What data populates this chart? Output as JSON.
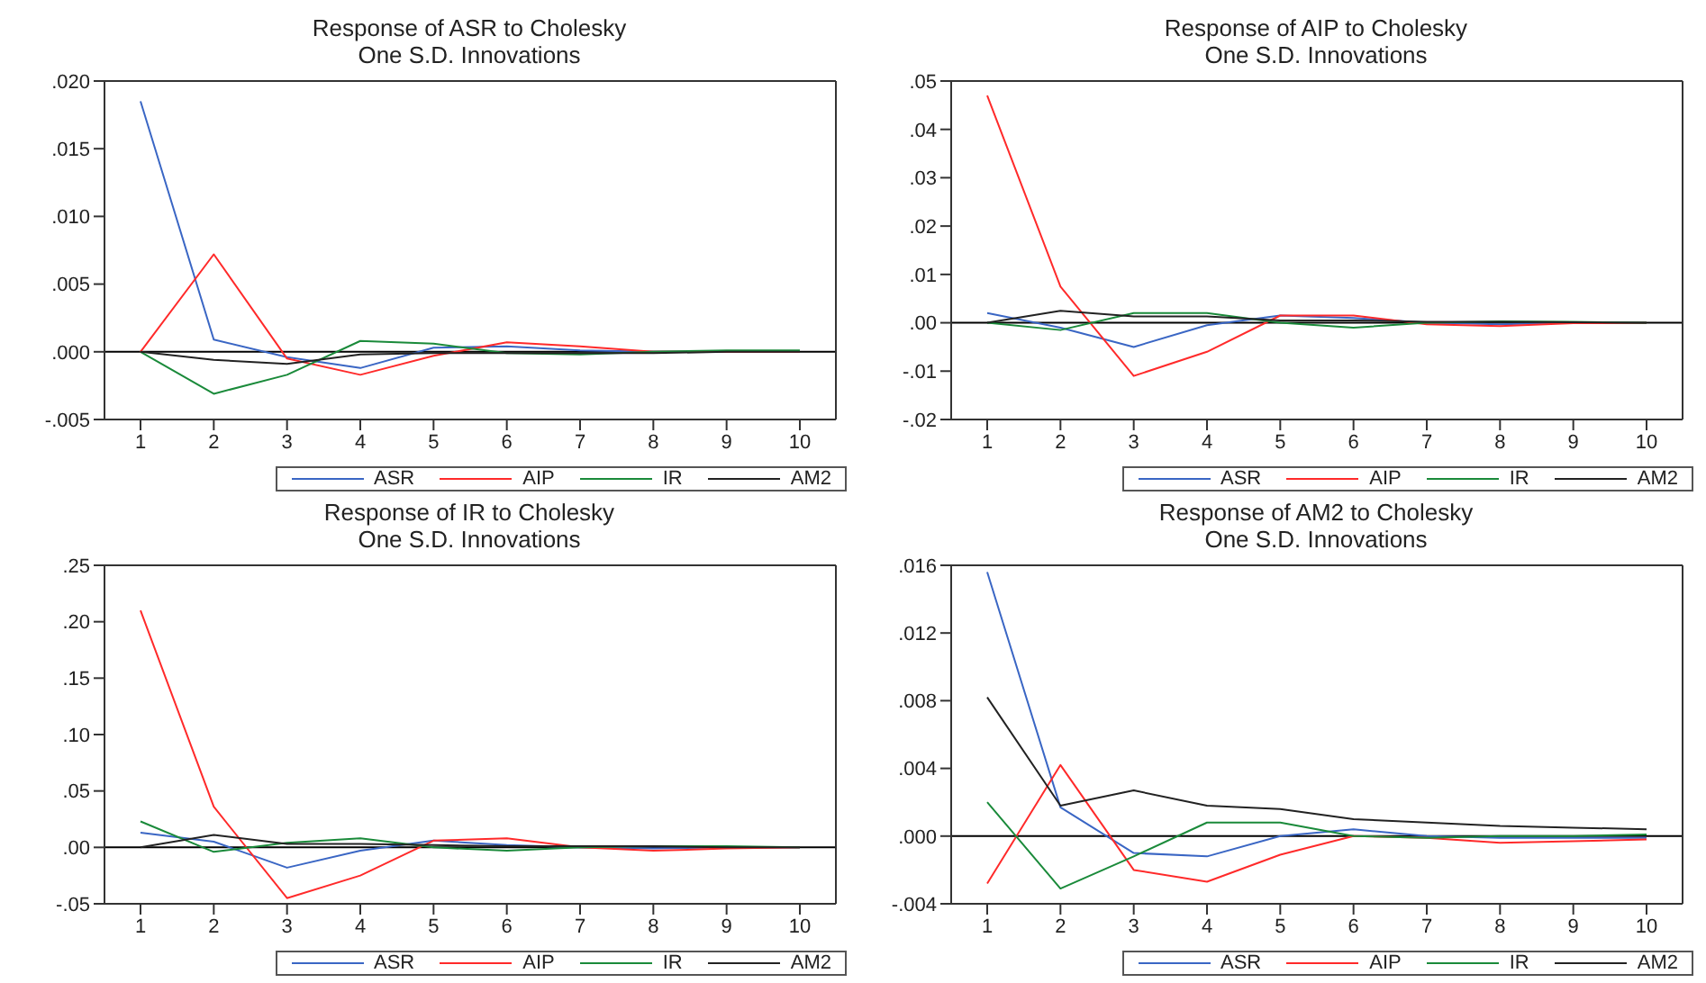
{
  "chart_data": [
    {
      "type": "line",
      "title": "Response of ASR to Cholesky",
      "subtitle": "One S.D. Innovations",
      "categories": [
        "1",
        "2",
        "3",
        "4",
        "5",
        "6",
        "7",
        "8",
        "9",
        "10"
      ],
      "ylim": [
        -0.005,
        0.02
      ],
      "yticks": [
        {
          "value": -0.005,
          "label": "-.005"
        },
        {
          "value": 0,
          "label": ".000"
        },
        {
          "value": 0.005,
          "label": ".005"
        },
        {
          "value": 0.01,
          "label": ".010"
        },
        {
          "value": 0.015,
          "label": ".015"
        },
        {
          "value": 0.02,
          "label": ".020"
        }
      ],
      "grid": false,
      "legend": "bottom",
      "marker": "none",
      "ref_lines": [
        {
          "axis": "y",
          "value": 0,
          "color": "#000000"
        }
      ],
      "series": [
        {
          "name": "ASR",
          "color": "#3a66c4",
          "values": [
            0.0185,
            0.0009,
            -0.0004,
            -0.0012,
            0.0003,
            0.0004,
            0.0001,
            0,
            0,
            0
          ]
        },
        {
          "name": "AIP",
          "color": "#ff2a2a",
          "values": [
            0,
            0.0072,
            -0.0005,
            -0.0017,
            -0.0003,
            0.0007,
            0.0004,
            0,
            0,
            0
          ]
        },
        {
          "name": "IR",
          "color": "#1a8a3a",
          "values": [
            0,
            -0.0031,
            -0.0017,
            0.0008,
            0.0006,
            -0.0001,
            -0.0002,
            0,
            0.0001,
            0.0001
          ]
        },
        {
          "name": "AM2",
          "color": "#222222",
          "values": [
            0,
            -0.0006,
            -0.0009,
            -0.0002,
            -0.0001,
            -0.0001,
            -0.0001,
            -0.0001,
            0,
            0
          ]
        }
      ]
    },
    {
      "type": "line",
      "title": "Response of AIP to Cholesky",
      "subtitle": "One S.D. Innovations",
      "categories": [
        "1",
        "2",
        "3",
        "4",
        "5",
        "6",
        "7",
        "8",
        "9",
        "10"
      ],
      "ylim": [
        -0.02,
        0.05
      ],
      "yticks": [
        {
          "value": -0.02,
          "label": "-.02"
        },
        {
          "value": -0.01,
          "label": "-.01"
        },
        {
          "value": 0,
          "label": ".00"
        },
        {
          "value": 0.01,
          "label": ".01"
        },
        {
          "value": 0.02,
          "label": ".02"
        },
        {
          "value": 0.03,
          "label": ".03"
        },
        {
          "value": 0.04,
          "label": ".04"
        },
        {
          "value": 0.05,
          "label": ".05"
        }
      ],
      "grid": false,
      "legend": "bottom",
      "marker": "none",
      "ref_lines": [
        {
          "axis": "y",
          "value": 0,
          "color": "#000000"
        }
      ],
      "series": [
        {
          "name": "ASR",
          "color": "#3a66c4",
          "values": [
            0.002,
            -0.001,
            -0.005,
            -0.0005,
            0.0015,
            0.001,
            0,
            -0.0003,
            0,
            0
          ]
        },
        {
          "name": "AIP",
          "color": "#ff2a2a",
          "values": [
            0.047,
            0.0075,
            -0.011,
            -0.006,
            0.0015,
            0.0015,
            -0.0003,
            -0.0007,
            -0.0001,
            0
          ]
        },
        {
          "name": "IR",
          "color": "#1a8a3a",
          "values": [
            0,
            -0.0015,
            0.002,
            0.002,
            0,
            -0.001,
            0,
            0.0003,
            0.0002,
            0
          ]
        },
        {
          "name": "AM2",
          "color": "#222222",
          "values": [
            0,
            0.0025,
            0.0013,
            0.0013,
            0.0005,
            0.0005,
            0.0002,
            0.0002,
            0.0001,
            0
          ]
        }
      ]
    },
    {
      "type": "line",
      "title": "Response of IR to Cholesky",
      "subtitle": "One S.D. Innovations",
      "categories": [
        "1",
        "2",
        "3",
        "4",
        "5",
        "6",
        "7",
        "8",
        "9",
        "10"
      ],
      "ylim": [
        -0.05,
        0.25
      ],
      "yticks": [
        {
          "value": -0.05,
          "label": "-.05"
        },
        {
          "value": 0,
          "label": ".00"
        },
        {
          "value": 0.05,
          "label": ".05"
        },
        {
          "value": 0.1,
          "label": ".10"
        },
        {
          "value": 0.15,
          "label": ".15"
        },
        {
          "value": 0.2,
          "label": ".20"
        },
        {
          "value": 0.25,
          "label": ".25"
        }
      ],
      "grid": false,
      "legend": "bottom",
      "marker": "none",
      "ref_lines": [
        {
          "axis": "y",
          "value": 0,
          "color": "#000000"
        }
      ],
      "series": [
        {
          "name": "ASR",
          "color": "#3a66c4",
          "values": [
            0.013,
            0.005,
            -0.018,
            -0.003,
            0.006,
            0.002,
            0,
            -0.001,
            0,
            0
          ]
        },
        {
          "name": "AIP",
          "color": "#ff2a2a",
          "values": [
            0.21,
            0.036,
            -0.045,
            -0.025,
            0.006,
            0.008,
            0,
            -0.003,
            -0.001,
            0
          ]
        },
        {
          "name": "IR",
          "color": "#1a8a3a",
          "values": [
            0.023,
            -0.004,
            0.004,
            0.008,
            0,
            -0.003,
            0,
            0.001,
            0.001,
            0
          ]
        },
        {
          "name": "AM2",
          "color": "#222222",
          "values": [
            0,
            0.011,
            0.003,
            0.003,
            0.002,
            0.001,
            0.001,
            0.001,
            0,
            0
          ]
        }
      ]
    },
    {
      "type": "line",
      "title": "Response of AM2 to Cholesky",
      "subtitle": "One S.D. Innovations",
      "categories": [
        "1",
        "2",
        "3",
        "4",
        "5",
        "6",
        "7",
        "8",
        "9",
        "10"
      ],
      "ylim": [
        -0.004,
        0.016
      ],
      "yticks": [
        {
          "value": -0.004,
          "label": "-.004"
        },
        {
          "value": 0,
          "label": ".000"
        },
        {
          "value": 0.004,
          "label": ".004"
        },
        {
          "value": 0.008,
          "label": ".008"
        },
        {
          "value": 0.012,
          "label": ".012"
        },
        {
          "value": 0.016,
          "label": ".016"
        }
      ],
      "grid": false,
      "legend": "bottom",
      "marker": "none",
      "ref_lines": [
        {
          "axis": "y",
          "value": 0,
          "color": "#000000"
        }
      ],
      "series": [
        {
          "name": "ASR",
          "color": "#3a66c4",
          "values": [
            0.0156,
            0.0017,
            -0.001,
            -0.0012,
            0,
            0.0004,
            0,
            -0.0001,
            -0.0001,
            -0.0001
          ]
        },
        {
          "name": "AIP",
          "color": "#ff2a2a",
          "values": [
            -0.0028,
            0.0042,
            -0.002,
            -0.0027,
            -0.0011,
            0,
            -0.0001,
            -0.0004,
            -0.0003,
            -0.0002
          ]
        },
        {
          "name": "IR",
          "color": "#1a8a3a",
          "values": [
            0.002,
            -0.0031,
            -0.0012,
            0.0008,
            0.0008,
            0,
            -0.0001,
            0,
            0,
            0.0001
          ]
        },
        {
          "name": "AM2",
          "color": "#222222",
          "values": [
            0.0082,
            0.0018,
            0.0027,
            0.0018,
            0.0016,
            0.001,
            0.0008,
            0.0006,
            0.0005,
            0.0004
          ]
        }
      ]
    }
  ]
}
